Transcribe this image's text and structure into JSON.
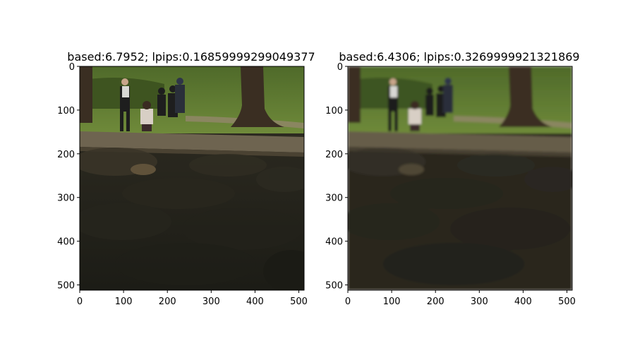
{
  "chart_data": [
    {
      "type": "image",
      "title": "based:6.7952; lpips:0.16859999299049377",
      "xlim": [
        0,
        512
      ],
      "ylim": [
        512,
        0
      ],
      "x_ticks": [
        0,
        100,
        200,
        300,
        400,
        500
      ],
      "y_ticks": [
        0,
        100,
        200,
        300,
        400,
        500
      ],
      "variant": "sharp"
    },
    {
      "type": "image",
      "title": "based:6.4306; lpips:0.3269999921321869",
      "xlim": [
        0,
        512
      ],
      "ylim": [
        512,
        0
      ],
      "x_ticks": [
        0,
        100,
        200,
        300,
        400,
        500
      ],
      "y_ticks": [
        0,
        100,
        200,
        300,
        400,
        500
      ],
      "variant": "blurred"
    }
  ],
  "colors": {
    "grass": "#5f7a32",
    "grass_dark": "#3e5420",
    "path": "#8a8660",
    "tree": "#3a2e22",
    "ledge": "#6e6450",
    "rocks": "#23221b",
    "rocks_light": "#3a3528"
  }
}
